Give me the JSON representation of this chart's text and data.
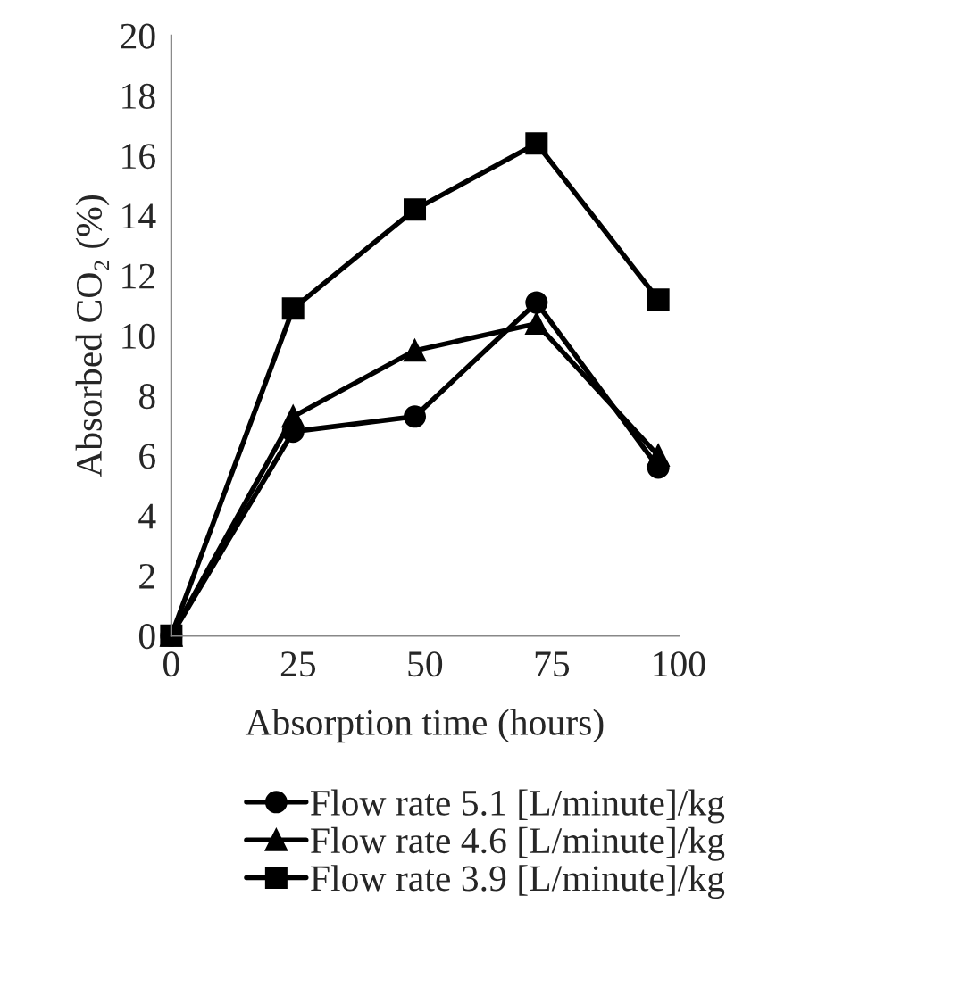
{
  "chart_data": {
    "type": "line",
    "xlabel": "Absorption time (hours)",
    "ylabel": "Absorbed CO₂ (%)",
    "x": [
      0,
      24,
      48,
      72,
      96
    ],
    "series": [
      {
        "name": "Flow rate 5.1 [L/minute]/kg",
        "color": "#000000",
        "marker": "circle",
        "values": [
          0,
          6.8,
          7.3,
          11.1,
          5.6
        ]
      },
      {
        "name": "Flow rate 4.6 [L/minute]/kg",
        "color": "#000000",
        "marker": "triangle",
        "values": [
          0,
          7.3,
          9.5,
          10.4,
          6.0
        ]
      },
      {
        "name": "Flow rate 3.9 [L/minute]/kg",
        "color": "#000000",
        "marker": "square",
        "values": [
          0,
          10.9,
          14.2,
          16.4,
          11.2
        ]
      }
    ],
    "xlim": [
      0,
      100
    ],
    "xticks": [
      0,
      25,
      50,
      75,
      100
    ],
    "ylim": [
      0,
      20
    ],
    "yticks": [
      0,
      2,
      4,
      6,
      8,
      10,
      12,
      14,
      16,
      18,
      20
    ],
    "legend": "bottom",
    "grid": false,
    "line_style": "solid"
  }
}
